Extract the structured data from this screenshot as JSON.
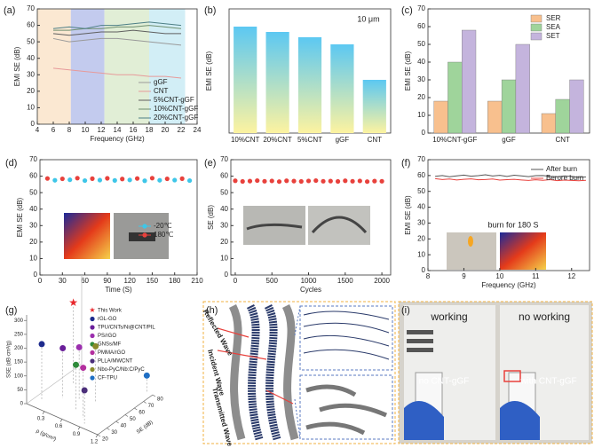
{
  "chart_data": [
    {
      "type": "line",
      "label": "(a)",
      "xlabel": "Frequency (GHz)",
      "ylabel": "EMI SE (dB)",
      "xlim": [
        4,
        24
      ],
      "xticks": [
        4,
        6,
        8,
        10,
        12,
        14,
        16,
        18,
        20,
        22,
        24
      ],
      "ylim": [
        0,
        70
      ],
      "yticks": [
        0,
        10,
        20,
        30,
        40,
        50,
        60,
        70
      ],
      "bands": [
        {
          "from": 4,
          "to": 8.2,
          "color": "#fbe8d2"
        },
        {
          "from": 8.2,
          "to": 12.4,
          "color": "#c3cbee"
        },
        {
          "from": 12.4,
          "to": 18,
          "color": "#e1eed6"
        },
        {
          "from": 18,
          "to": 22.5,
          "color": "#d2eef6"
        }
      ],
      "legend": "lower right",
      "x": [
        6,
        8,
        10,
        12,
        14,
        16,
        18,
        20,
        22
      ],
      "series": [
        {
          "name": "gGF",
          "color": "#9a9a9a",
          "values": [
            52,
            50,
            51,
            52,
            52,
            51,
            50,
            49,
            48
          ]
        },
        {
          "name": "CNT",
          "color": "#e79a9a",
          "values": [
            34,
            33,
            32,
            31,
            30,
            30,
            29,
            29,
            28
          ]
        },
        {
          "name": "5%CNT-gGF",
          "color": "#5f5f5f",
          "values": [
            55,
            54,
            55,
            56,
            56,
            57,
            56,
            55,
            55
          ]
        },
        {
          "name": "10%CNT-gGF",
          "color": "#6f8f6f",
          "values": [
            57,
            57,
            58,
            58,
            59,
            59,
            60,
            59,
            58
          ]
        },
        {
          "name": "20%CNT-gGF",
          "color": "#4d7f86",
          "values": [
            58,
            59,
            58,
            60,
            60,
            61,
            62,
            61,
            60
          ]
        }
      ]
    },
    {
      "type": "bar",
      "label": "(b)",
      "ylabel": "EMI SE (dB)",
      "annotation": "10 μm",
      "categories": [
        "10%CNT",
        "20%CNT",
        "5%CNT",
        "gGF",
        "CNT"
      ],
      "values": [
        60,
        57,
        54,
        50,
        30
      ],
      "ylim": [
        0,
        70
      ],
      "gradient": [
        "#5cc8f2",
        "#fdf3a0"
      ]
    },
    {
      "type": "grouped_bar",
      "label": "(c)",
      "ylabel": "EMI SE (dB)",
      "legend": "upper right",
      "categories": [
        "10%CNT-gGF",
        "gGF",
        "CNT"
      ],
      "ylim": [
        0,
        70
      ],
      "yticks": [
        0,
        10,
        20,
        30,
        40,
        50,
        60,
        70
      ],
      "series": [
        {
          "name": "SER",
          "color": "#f8c08e",
          "values": [
            18,
            18,
            11
          ]
        },
        {
          "name": "SEA",
          "color": "#9fd49b",
          "values": [
            40,
            30,
            19
          ]
        },
        {
          "name": "SET",
          "color": "#c4b4dd",
          "values": [
            58,
            50,
            30
          ]
        }
      ]
    },
    {
      "type": "scatter",
      "label": "(d)",
      "xlabel": "Time (S)",
      "ylabel": "EMI SE (dB)",
      "legend": "center right",
      "xlim": [
        0,
        210
      ],
      "xticks": [
        0,
        30,
        60,
        90,
        120,
        150,
        180,
        210
      ],
      "ylim": [
        0,
        70
      ],
      "yticks": [
        0,
        10,
        20,
        30,
        40,
        50,
        60,
        70
      ],
      "series": [
        {
          "name": "-20℃",
          "color": "#3ec6e8",
          "x": [
            20,
            40,
            60,
            80,
            100,
            120,
            140,
            160,
            180,
            200
          ],
          "values": [
            57.5,
            57.8,
            57.3,
            57.6,
            57.4,
            57.7,
            57.2,
            57.5,
            57.6,
            57.3
          ]
        },
        {
          "name": "180℃",
          "color": "#e8413c",
          "x": [
            10,
            30,
            50,
            70,
            90,
            110,
            130,
            150,
            170,
            190
          ],
          "values": [
            58.6,
            58.4,
            58.8,
            58.5,
            58.7,
            58.3,
            58.6,
            58.8,
            58.4,
            58.5
          ]
        }
      ]
    },
    {
      "type": "scatter",
      "label": "(e)",
      "xlabel": "Cycles",
      "ylabel": "SE (dB)",
      "xlim": [
        -60,
        2120
      ],
      "xticks": [
        0,
        500,
        1000,
        1500,
        2000
      ],
      "ylim": [
        0,
        70
      ],
      "yticks": [
        0,
        10,
        20,
        30,
        40,
        50,
        60,
        70
      ],
      "color": "#e8413c",
      "x": [
        0,
        100,
        200,
        300,
        400,
        500,
        600,
        700,
        800,
        900,
        1000,
        1100,
        1200,
        1300,
        1400,
        1500,
        1600,
        1700,
        1800,
        1900,
        2000
      ],
      "values": [
        57.2,
        56.8,
        57.0,
        57.3,
        56.9,
        57.1,
        56.7,
        57.2,
        57.0,
        56.8,
        57.1,
        57.3,
        56.9,
        57.0,
        56.8,
        57.2,
        56.9,
        57.1,
        56.7,
        57.0,
        56.9
      ]
    },
    {
      "type": "line",
      "label": "(f)",
      "xlabel": "Frequency (GHz)",
      "ylabel": "EMI SE (dB)",
      "legend": "upper right",
      "annotation": "burn for 180 S",
      "xlim": [
        8,
        12.5
      ],
      "xticks": [
        8,
        9,
        10,
        11,
        12
      ],
      "ylim": [
        0,
        70
      ],
      "yticks": [
        0,
        10,
        20,
        30,
        40,
        50,
        60,
        70
      ],
      "x": [
        8.2,
        8.4,
        8.6,
        8.8,
        9.0,
        9.2,
        9.4,
        9.6,
        9.8,
        10.0,
        10.2,
        10.4,
        10.6,
        10.8,
        11.0,
        11.2,
        11.4,
        11.6,
        11.8,
        12.0,
        12.2,
        12.4
      ],
      "series": [
        {
          "name": "After burn",
          "color": "#555555",
          "values": [
            59.5,
            60,
            59.2,
            59.8,
            60.3,
            59.6,
            59.9,
            60.5,
            59.7,
            60.1,
            59.4,
            60.2,
            59.8,
            59.3,
            59.9,
            60.0,
            59.5,
            59.2,
            59.7,
            59.4,
            58.9,
            59.1
          ]
        },
        {
          "name": "Berore burn",
          "color": "#e8413c",
          "values": [
            58.0,
            57.5,
            57.8,
            57.2,
            57.6,
            57.9,
            57.3,
            57.5,
            57.8,
            57.1,
            57.4,
            57.6,
            57.2,
            56.9,
            57.3,
            57.0,
            57.4,
            56.8,
            57.1,
            56.9,
            56.7,
            57.0
          ]
        }
      ]
    },
    {
      "type": "scatter3d",
      "label": "(g)",
      "xlabel": "ρ (g/cm³)",
      "ylabel": "SE (dB)",
      "zlabel": "SSE (dB·cm³/g)",
      "xlim": [
        0,
        1.2
      ],
      "xticks": [
        0.3,
        0.6,
        0.9,
        1.2
      ],
      "ylim": [
        20,
        80
      ],
      "yticks": [
        20,
        30,
        40,
        50,
        60,
        70,
        80
      ],
      "zlim": [
        0,
        320
      ],
      "zticks": [
        0,
        50,
        100,
        150,
        200,
        250,
        300
      ],
      "series": [
        {
          "name": "This Work",
          "color": "#e8262b",
          "marker": "star",
          "x": 0.2,
          "y": 58,
          "z": 290
        },
        {
          "name": "rGL-GO",
          "color": "#1d2a8c",
          "x": 0.1,
          "y": 30,
          "z": 200
        },
        {
          "name": "TPU/CNTs/Ni@CNT/PIL",
          "color": "#6a1f9a",
          "x": 0.3,
          "y": 40,
          "z": 180
        },
        {
          "name": "PS/rGO",
          "color": "#9b2fae",
          "x": 0.5,
          "y": 45,
          "z": 190
        },
        {
          "name": "GNSs/MF",
          "color": "#2e8b3a",
          "x": 0.6,
          "y": 35,
          "z": 160
        },
        {
          "name": "PMMA/rGO",
          "color": "#b32f9e",
          "x": 0.8,
          "y": 30,
          "z": 180
        },
        {
          "name": "PLLA/MWCNT",
          "color": "#4b2f7a",
          "x": 0.9,
          "y": 25,
          "z": 120
        },
        {
          "name": "Nbo-PyC/Nb:C/PyC",
          "color": "#8a8a2a",
          "x": 0.7,
          "y": 50,
          "z": 200
        },
        {
          "name": "CF-TPU",
          "color": "#1f6fc4",
          "x": 1.1,
          "y": 80,
          "z": 60
        }
      ]
    }
  ],
  "diagram": {
    "label": "(h)",
    "waves": [
      "Reflected Wave",
      "Incident Wave",
      "Transmitted Wave"
    ]
  },
  "photo": {
    "label": "(i)",
    "left_status": "working",
    "right_status": "no working",
    "left_sample": "no CNT-gGF",
    "right_sample": "with CNT-gGF"
  }
}
